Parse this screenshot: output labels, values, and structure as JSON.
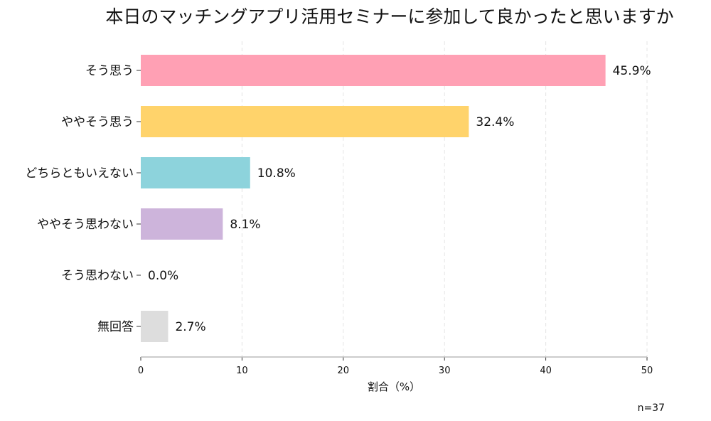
{
  "chart_data": {
    "type": "bar",
    "orientation": "horizontal",
    "title": "本日のマッチングアプリ活用セミナーに参加して良かったと思いますか",
    "categories": [
      "そう思う",
      "ややそう思う",
      "どちらともいえない",
      "ややそう思わない",
      "そう思わない",
      "無回答"
    ],
    "values": [
      45.9,
      32.4,
      10.8,
      8.1,
      0.0,
      2.7
    ],
    "data_labels": [
      "45.9%",
      "32.4%",
      "10.8%",
      "8.1%",
      "0.0%",
      "2.7%"
    ],
    "colors": [
      "#FFA0B4",
      "#FFD36B",
      "#8DD3DC",
      "#CDB4DB",
      "#B0B0B0",
      "#DDDDDD"
    ],
    "xlabel": "割合（%）",
    "ylabel": "",
    "xlim": [
      0,
      50
    ],
    "xticks": [
      0,
      10,
      20,
      30,
      40,
      50
    ],
    "grid": "vertical dashed",
    "annotation": "n=37"
  }
}
